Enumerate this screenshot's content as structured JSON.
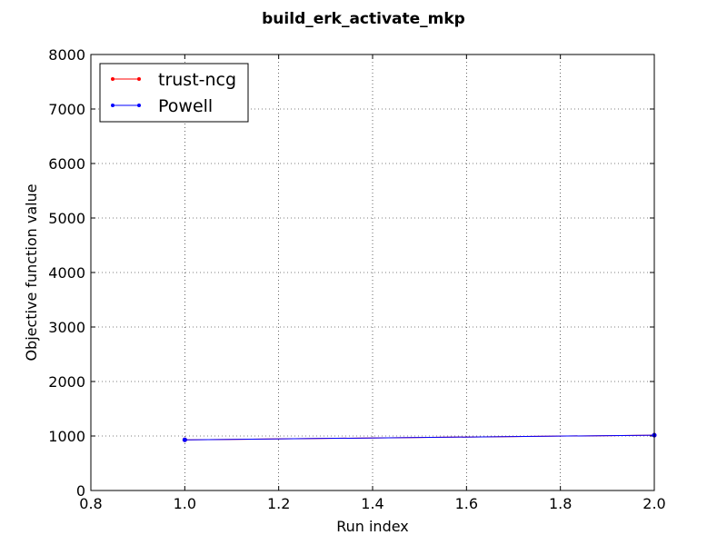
{
  "chart_data": {
    "type": "line",
    "title": "build_erk_activate_mkp",
    "xlabel": "Run index",
    "ylabel": "Objective function value",
    "xlim": [
      0.8,
      2.0
    ],
    "ylim": [
      0,
      8000
    ],
    "xticks": [
      "0.8",
      "1.0",
      "1.2",
      "1.4",
      "1.6",
      "1.8",
      "2.0"
    ],
    "yticks": [
      "0",
      "1000",
      "2000",
      "3000",
      "4000",
      "5000",
      "6000",
      "7000",
      "8000"
    ],
    "grid": true,
    "legend_position": "top-left",
    "series": [
      {
        "name": "trust-ncg",
        "color": "#ff0000",
        "x": [
          1,
          2
        ],
        "y": [
          930,
          1015
        ]
      },
      {
        "name": "Powell",
        "color": "#0000ff",
        "x": [
          1,
          2
        ],
        "y": [
          930,
          1015
        ]
      }
    ]
  }
}
